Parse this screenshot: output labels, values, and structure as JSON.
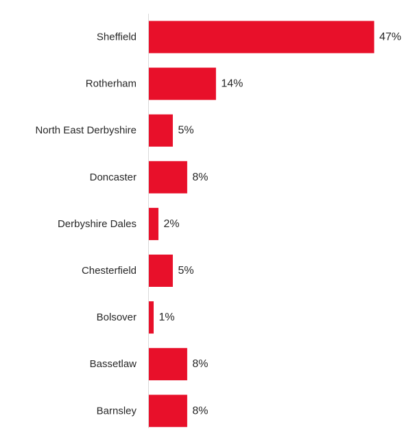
{
  "chart_data": {
    "type": "bar",
    "orientation": "horizontal",
    "categories": [
      "Sheffield",
      "Rotherham",
      "North East Derbyshire",
      "Doncaster",
      "Derbyshire Dales",
      "Chesterfield",
      "Bolsover",
      "Bassetlaw",
      "Barnsley"
    ],
    "values": [
      47,
      14,
      5,
      8,
      2,
      5,
      1,
      8,
      8
    ],
    "data_labels": [
      "47%",
      "14%",
      "5%",
      "8%",
      "2%",
      "5%",
      "1%",
      "8%",
      "8%"
    ],
    "title": "",
    "xlabel": "",
    "ylabel": "",
    "xlim": [
      0,
      47
    ],
    "grid": false,
    "legend": "none",
    "bar_color": "#E8102A",
    "axis_color": "#D9D9D9",
    "text_color": "#262626"
  }
}
